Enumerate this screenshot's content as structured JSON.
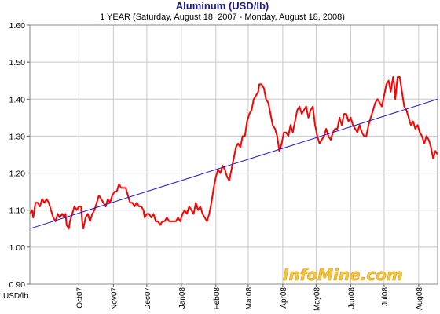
{
  "chart_data": {
    "type": "line",
    "title": "Aluminum (USD/lb)",
    "subtitle": "1 YEAR (Saturday, August 18, 2007  -  Monday, August 18, 2008)",
    "ylabel": "USD/lb",
    "xlabel": "",
    "ylim": [
      0.9,
      1.6
    ],
    "yticks": [
      "0.90",
      "1.00",
      "1.10",
      "1.20",
      "1.30",
      "1.40",
      "1.50",
      "1.60"
    ],
    "xticks": [
      {
        "label": "Oct07",
        "day": 44
      },
      {
        "label": "Nov07",
        "day": 75
      },
      {
        "label": "Dec07",
        "day": 105
      },
      {
        "label": "Jan08",
        "day": 136
      },
      {
        "label": "Feb08",
        "day": 167
      },
      {
        "label": "Mar08",
        "day": 196
      },
      {
        "label": "Apr08",
        "day": 227
      },
      {
        "label": "May08",
        "day": 257
      },
      {
        "label": "Jun08",
        "day": 288
      },
      {
        "label": "Jul08",
        "day": 318
      },
      {
        "label": "Aug08",
        "day": 349
      }
    ],
    "xlim": [
      0,
      366
    ],
    "grid": true,
    "series": [
      {
        "color": "#ff0000",
        "values": [
          [
            0,
            1.09
          ],
          [
            2,
            1.1
          ],
          [
            3,
            1.08
          ],
          [
            5,
            1.12
          ],
          [
            7,
            1.12
          ],
          [
            9,
            1.11
          ],
          [
            11,
            1.13
          ],
          [
            13,
            1.12
          ],
          [
            15,
            1.13
          ],
          [
            17,
            1.12
          ],
          [
            19,
            1.1
          ],
          [
            21,
            1.08
          ],
          [
            23,
            1.07
          ],
          [
            25,
            1.09
          ],
          [
            27,
            1.08
          ],
          [
            29,
            1.09
          ],
          [
            31,
            1.08
          ],
          [
            32,
            1.09
          ],
          [
            33,
            1.06
          ],
          [
            35,
            1.05
          ],
          [
            36,
            1.07
          ],
          [
            38,
            1.09
          ],
          [
            40,
            1.11
          ],
          [
            42,
            1.1
          ],
          [
            44,
            1.11
          ],
          [
            46,
            1.11
          ],
          [
            47,
            1.07
          ],
          [
            48,
            1.05
          ],
          [
            50,
            1.08
          ],
          [
            52,
            1.09
          ],
          [
            54,
            1.07
          ],
          [
            56,
            1.09
          ],
          [
            58,
            1.1
          ],
          [
            60,
            1.12
          ],
          [
            62,
            1.14
          ],
          [
            64,
            1.13
          ],
          [
            66,
            1.12
          ],
          [
            68,
            1.11
          ],
          [
            70,
            1.13
          ],
          [
            72,
            1.12
          ],
          [
            74,
            1.14
          ],
          [
            76,
            1.15
          ],
          [
            78,
            1.15
          ],
          [
            80,
            1.17
          ],
          [
            82,
            1.16
          ],
          [
            84,
            1.16
          ],
          [
            86,
            1.16
          ],
          [
            88,
            1.14
          ],
          [
            90,
            1.12
          ],
          [
            92,
            1.12
          ],
          [
            94,
            1.11
          ],
          [
            96,
            1.12
          ],
          [
            98,
            1.11
          ],
          [
            100,
            1.11
          ],
          [
            102,
            1.1
          ],
          [
            103,
            1.08
          ],
          [
            105,
            1.09
          ],
          [
            107,
            1.09
          ],
          [
            109,
            1.08
          ],
          [
            111,
            1.09
          ],
          [
            113,
            1.07
          ],
          [
            115,
            1.07
          ],
          [
            117,
            1.06
          ],
          [
            119,
            1.07
          ],
          [
            121,
            1.07
          ],
          [
            123,
            1.08
          ],
          [
            125,
            1.07
          ],
          [
            127,
            1.07
          ],
          [
            129,
            1.07
          ],
          [
            131,
            1.07
          ],
          [
            133,
            1.08
          ],
          [
            135,
            1.07
          ],
          [
            137,
            1.09
          ],
          [
            139,
            1.1
          ],
          [
            141,
            1.09
          ],
          [
            143,
            1.11
          ],
          [
            145,
            1.1
          ],
          [
            147,
            1.09
          ],
          [
            149,
            1.12
          ],
          [
            151,
            1.1
          ],
          [
            153,
            1.11
          ],
          [
            155,
            1.09
          ],
          [
            157,
            1.08
          ],
          [
            159,
            1.07
          ],
          [
            161,
            1.09
          ],
          [
            163,
            1.12
          ],
          [
            165,
            1.16
          ],
          [
            167,
            1.19
          ],
          [
            169,
            1.21
          ],
          [
            171,
            1.2
          ],
          [
            173,
            1.22
          ],
          [
            175,
            1.21
          ],
          [
            177,
            1.19
          ],
          [
            179,
            1.18
          ],
          [
            181,
            1.21
          ],
          [
            183,
            1.24
          ],
          [
            185,
            1.27
          ],
          [
            187,
            1.28
          ],
          [
            189,
            1.27
          ],
          [
            191,
            1.3
          ],
          [
            193,
            1.3
          ],
          [
            195,
            1.34
          ],
          [
            197,
            1.36
          ],
          [
            199,
            1.37
          ],
          [
            201,
            1.4
          ],
          [
            203,
            1.41
          ],
          [
            205,
            1.42
          ],
          [
            206,
            1.44
          ],
          [
            208,
            1.44
          ],
          [
            210,
            1.43
          ],
          [
            212,
            1.4
          ],
          [
            214,
            1.39
          ],
          [
            216,
            1.36
          ],
          [
            218,
            1.33
          ],
          [
            220,
            1.32
          ],
          [
            222,
            1.3
          ],
          [
            224,
            1.26
          ],
          [
            226,
            1.28
          ],
          [
            228,
            1.31
          ],
          [
            230,
            1.31
          ],
          [
            232,
            1.3
          ],
          [
            234,
            1.33
          ],
          [
            236,
            1.31
          ],
          [
            238,
            1.34
          ],
          [
            240,
            1.37
          ],
          [
            242,
            1.38
          ],
          [
            244,
            1.36
          ],
          [
            246,
            1.37
          ],
          [
            248,
            1.38
          ],
          [
            250,
            1.35
          ],
          [
            252,
            1.37
          ],
          [
            254,
            1.38
          ],
          [
            256,
            1.33
          ],
          [
            258,
            1.3
          ],
          [
            260,
            1.28
          ],
          [
            262,
            1.29
          ],
          [
            264,
            1.3
          ],
          [
            266,
            1.32
          ],
          [
            268,
            1.3
          ],
          [
            270,
            1.29
          ],
          [
            272,
            1.31
          ],
          [
            274,
            1.32
          ],
          [
            276,
            1.32
          ],
          [
            278,
            1.35
          ],
          [
            280,
            1.33
          ],
          [
            282,
            1.36
          ],
          [
            284,
            1.36
          ],
          [
            286,
            1.34
          ],
          [
            288,
            1.35
          ],
          [
            290,
            1.33
          ],
          [
            292,
            1.32
          ],
          [
            294,
            1.31
          ],
          [
            296,
            1.33
          ],
          [
            298,
            1.31
          ],
          [
            300,
            1.3
          ],
          [
            302,
            1.3
          ],
          [
            304,
            1.33
          ],
          [
            306,
            1.35
          ],
          [
            308,
            1.37
          ],
          [
            310,
            1.39
          ],
          [
            312,
            1.4
          ],
          [
            314,
            1.39
          ],
          [
            316,
            1.38
          ],
          [
            318,
            1.41
          ],
          [
            320,
            1.44
          ],
          [
            322,
            1.45
          ],
          [
            324,
            1.42
          ],
          [
            326,
            1.46
          ],
          [
            327,
            1.44
          ],
          [
            328,
            1.4
          ],
          [
            330,
            1.46
          ],
          [
            332,
            1.46
          ],
          [
            334,
            1.42
          ],
          [
            336,
            1.38
          ],
          [
            338,
            1.37
          ],
          [
            340,
            1.35
          ],
          [
            342,
            1.33
          ],
          [
            344,
            1.34
          ],
          [
            346,
            1.32
          ],
          [
            348,
            1.33
          ],
          [
            350,
            1.31
          ],
          [
            352,
            1.3
          ],
          [
            354,
            1.28
          ],
          [
            356,
            1.3
          ],
          [
            358,
            1.29
          ],
          [
            360,
            1.27
          ],
          [
            362,
            1.24
          ],
          [
            364,
            1.26
          ],
          [
            366,
            1.25
          ]
        ]
      },
      {
        "color": "#1a1acc",
        "values": [
          [
            0,
            1.05
          ],
          [
            366,
            1.4
          ]
        ]
      }
    ],
    "watermark": "InfoMine.com"
  }
}
